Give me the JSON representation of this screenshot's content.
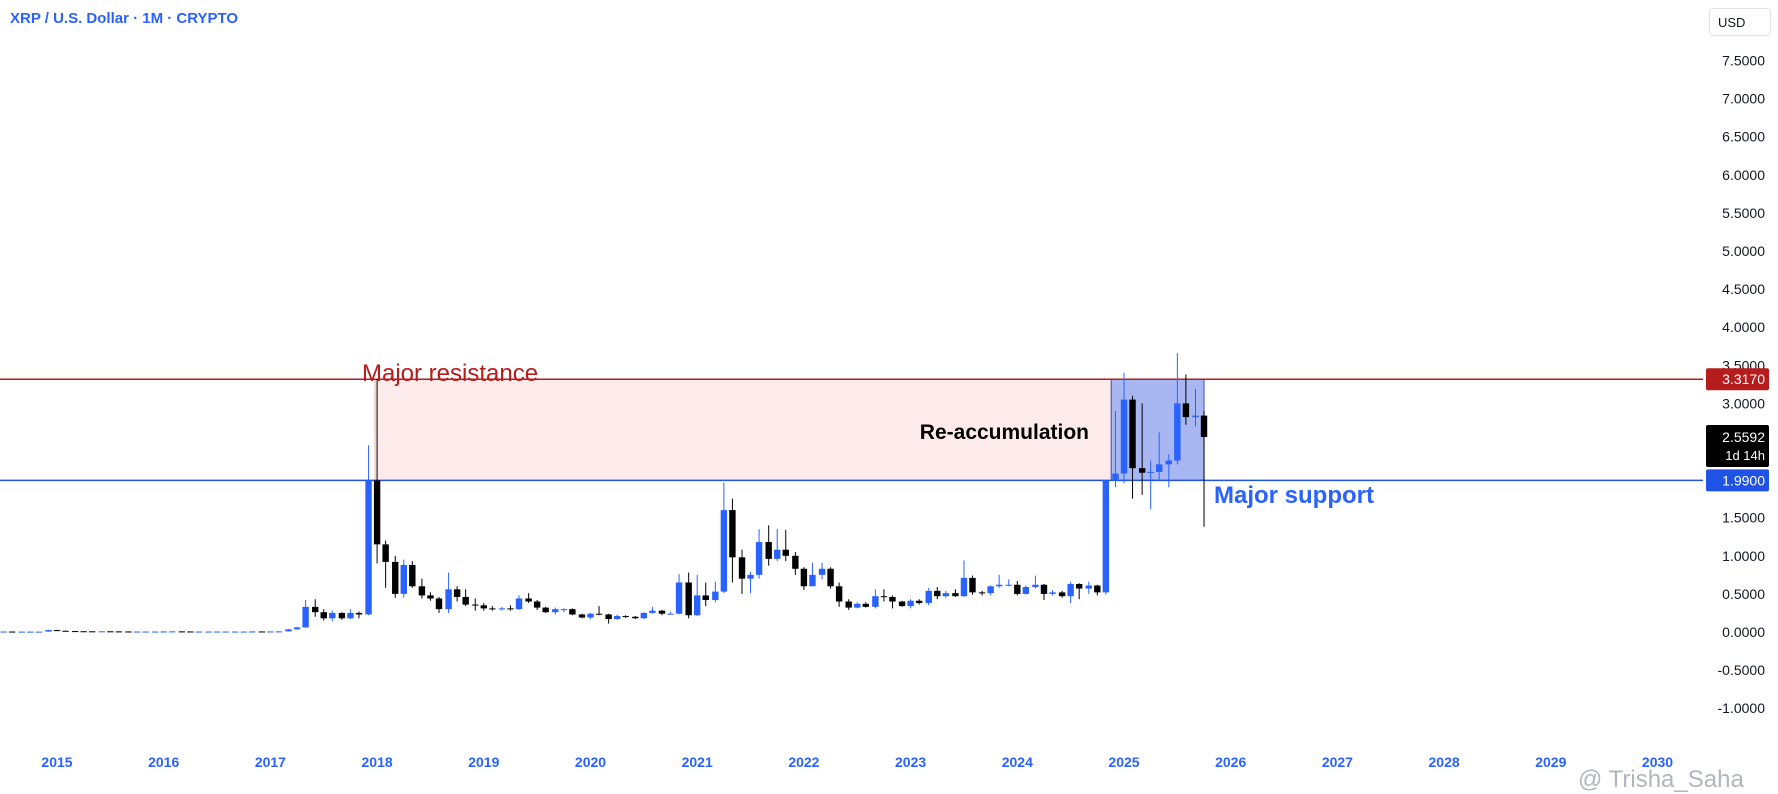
{
  "header": {
    "title": "XRP / U.S. Dollar · 1M · CRYPTO",
    "currency": "USD"
  },
  "watermark": "@ Trisha_Saha",
  "chart_data": {
    "type": "candlestick",
    "title": "XRP / U.S. Dollar · 1M · CRYPTO",
    "ylim": [
      -1.25,
      7.9
    ],
    "y_ticks": [
      "7.5000",
      "7.0000",
      "6.5000",
      "6.0000",
      "5.5000",
      "5.0000",
      "4.5000",
      "4.0000",
      "3.5000",
      "3.0000",
      "2.5000",
      "2.0000",
      "1.5000",
      "1.0000",
      "0.5000",
      "0.0000",
      "-0.5000",
      "-1.0000"
    ],
    "x_ticks": [
      "2015",
      "2016",
      "2017",
      "2018",
      "2019",
      "2020",
      "2021",
      "2022",
      "2023",
      "2024",
      "2025",
      "2026",
      "2027",
      "2028",
      "2029",
      "2030"
    ],
    "grid": false,
    "price_labels": {
      "resistance": "3.3170",
      "current_price": "2.5592",
      "countdown": "1d 14h",
      "support": "1.9900"
    },
    "levels": [
      {
        "name": "Major resistance",
        "value": 3.317,
        "color": "#b71c1c"
      },
      {
        "name": "Major support",
        "value": 1.99,
        "color": "#1e53e5"
      }
    ],
    "annotations": {
      "resistance_label": "Major resistance",
      "support_label": "Major support",
      "box_label": "Re-accumulation"
    },
    "resistance_zone": {
      "x_start": 2017.98,
      "x_end": 2024.88,
      "y_low": 1.99,
      "y_high": 3.317,
      "color": "#fce8e6"
    },
    "reaccumulation_box": {
      "x_start": 2024.88,
      "x_end": 2025.75,
      "y_low": 1.99,
      "y_high": 3.317,
      "color": "#99aaee"
    },
    "series_colors": {
      "up": "#2962ff",
      "down": "#000000"
    },
    "candles": [
      {
        "t": 2014.5,
        "o": 0.005,
        "h": 0.007,
        "l": 0.004,
        "c": 0.006
      },
      {
        "t": 2014.58,
        "o": 0.006,
        "h": 0.008,
        "l": 0.005,
        "c": 0.005
      },
      {
        "t": 2014.67,
        "o": 0.005,
        "h": 0.007,
        "l": 0.004,
        "c": 0.005
      },
      {
        "t": 2014.75,
        "o": 0.005,
        "h": 0.006,
        "l": 0.004,
        "c": 0.005
      },
      {
        "t": 2014.83,
        "o": 0.005,
        "h": 0.006,
        "l": 0.004,
        "c": 0.005
      },
      {
        "t": 2014.92,
        "o": 0.005,
        "h": 0.03,
        "l": 0.004,
        "c": 0.025
      },
      {
        "t": 2015.0,
        "o": 0.025,
        "h": 0.03,
        "l": 0.012,
        "c": 0.016
      },
      {
        "t": 2015.08,
        "o": 0.016,
        "h": 0.02,
        "l": 0.01,
        "c": 0.012
      },
      {
        "t": 2015.17,
        "o": 0.012,
        "h": 0.014,
        "l": 0.008,
        "c": 0.01
      },
      {
        "t": 2015.25,
        "o": 0.01,
        "h": 0.012,
        "l": 0.008,
        "c": 0.009
      },
      {
        "t": 2015.33,
        "o": 0.009,
        "h": 0.01,
        "l": 0.007,
        "c": 0.008
      },
      {
        "t": 2015.42,
        "o": 0.008,
        "h": 0.01,
        "l": 0.007,
        "c": 0.009
      },
      {
        "t": 2015.5,
        "o": 0.009,
        "h": 0.01,
        "l": 0.007,
        "c": 0.008
      },
      {
        "t": 2015.58,
        "o": 0.008,
        "h": 0.009,
        "l": 0.006,
        "c": 0.007
      },
      {
        "t": 2015.67,
        "o": 0.007,
        "h": 0.008,
        "l": 0.006,
        "c": 0.006
      },
      {
        "t": 2015.75,
        "o": 0.006,
        "h": 0.007,
        "l": 0.005,
        "c": 0.006
      },
      {
        "t": 2015.83,
        "o": 0.006,
        "h": 0.007,
        "l": 0.005,
        "c": 0.006
      },
      {
        "t": 2015.92,
        "o": 0.006,
        "h": 0.007,
        "l": 0.005,
        "c": 0.006
      },
      {
        "t": 2016.0,
        "o": 0.006,
        "h": 0.008,
        "l": 0.005,
        "c": 0.007
      },
      {
        "t": 2016.08,
        "o": 0.007,
        "h": 0.009,
        "l": 0.006,
        "c": 0.008
      },
      {
        "t": 2016.17,
        "o": 0.008,
        "h": 0.009,
        "l": 0.006,
        "c": 0.007
      },
      {
        "t": 2016.25,
        "o": 0.007,
        "h": 0.008,
        "l": 0.006,
        "c": 0.006
      },
      {
        "t": 2016.33,
        "o": 0.006,
        "h": 0.008,
        "l": 0.005,
        "c": 0.006
      },
      {
        "t": 2016.42,
        "o": 0.006,
        "h": 0.008,
        "l": 0.005,
        "c": 0.006
      },
      {
        "t": 2016.5,
        "o": 0.006,
        "h": 0.007,
        "l": 0.005,
        "c": 0.006
      },
      {
        "t": 2016.58,
        "o": 0.006,
        "h": 0.007,
        "l": 0.005,
        "c": 0.006
      },
      {
        "t": 2016.67,
        "o": 0.006,
        "h": 0.007,
        "l": 0.005,
        "c": 0.006
      },
      {
        "t": 2016.75,
        "o": 0.006,
        "h": 0.007,
        "l": 0.005,
        "c": 0.006
      },
      {
        "t": 2016.83,
        "o": 0.006,
        "h": 0.008,
        "l": 0.005,
        "c": 0.007
      },
      {
        "t": 2016.92,
        "o": 0.007,
        "h": 0.008,
        "l": 0.006,
        "c": 0.006
      },
      {
        "t": 2017.0,
        "o": 0.006,
        "h": 0.008,
        "l": 0.005,
        "c": 0.007
      },
      {
        "t": 2017.08,
        "o": 0.007,
        "h": 0.009,
        "l": 0.006,
        "c": 0.008
      },
      {
        "t": 2017.17,
        "o": 0.008,
        "h": 0.04,
        "l": 0.007,
        "c": 0.035
      },
      {
        "t": 2017.25,
        "o": 0.035,
        "h": 0.07,
        "l": 0.03,
        "c": 0.06
      },
      {
        "t": 2017.33,
        "o": 0.06,
        "h": 0.42,
        "l": 0.055,
        "c": 0.33
      },
      {
        "t": 2017.42,
        "o": 0.33,
        "h": 0.43,
        "l": 0.2,
        "c": 0.26
      },
      {
        "t": 2017.5,
        "o": 0.26,
        "h": 0.3,
        "l": 0.15,
        "c": 0.18
      },
      {
        "t": 2017.58,
        "o": 0.18,
        "h": 0.28,
        "l": 0.14,
        "c": 0.25
      },
      {
        "t": 2017.67,
        "o": 0.25,
        "h": 0.26,
        "l": 0.16,
        "c": 0.18
      },
      {
        "t": 2017.75,
        "o": 0.18,
        "h": 0.3,
        "l": 0.17,
        "c": 0.25
      },
      {
        "t": 2017.83,
        "o": 0.25,
        "h": 0.27,
        "l": 0.18,
        "c": 0.23
      },
      {
        "t": 2017.92,
        "o": 0.23,
        "h": 2.45,
        "l": 0.22,
        "c": 1.99
      },
      {
        "t": 2018.0,
        "o": 1.99,
        "h": 3.317,
        "l": 0.9,
        "c": 1.15
      },
      {
        "t": 2018.08,
        "o": 1.15,
        "h": 1.2,
        "l": 0.58,
        "c": 0.92
      },
      {
        "t": 2018.17,
        "o": 0.92,
        "h": 1.0,
        "l": 0.45,
        "c": 0.5
      },
      {
        "t": 2018.25,
        "o": 0.5,
        "h": 0.95,
        "l": 0.45,
        "c": 0.88
      },
      {
        "t": 2018.33,
        "o": 0.88,
        "h": 0.93,
        "l": 0.58,
        "c": 0.6
      },
      {
        "t": 2018.42,
        "o": 0.6,
        "h": 0.7,
        "l": 0.44,
        "c": 0.48
      },
      {
        "t": 2018.5,
        "o": 0.48,
        "h": 0.52,
        "l": 0.41,
        "c": 0.44
      },
      {
        "t": 2018.58,
        "o": 0.44,
        "h": 0.46,
        "l": 0.25,
        "c": 0.3
      },
      {
        "t": 2018.67,
        "o": 0.3,
        "h": 0.78,
        "l": 0.25,
        "c": 0.56
      },
      {
        "t": 2018.75,
        "o": 0.56,
        "h": 0.6,
        "l": 0.4,
        "c": 0.46
      },
      {
        "t": 2018.83,
        "o": 0.46,
        "h": 0.56,
        "l": 0.34,
        "c": 0.36
      },
      {
        "t": 2018.92,
        "o": 0.36,
        "h": 0.44,
        "l": 0.28,
        "c": 0.35
      },
      {
        "t": 2019.0,
        "o": 0.35,
        "h": 0.38,
        "l": 0.28,
        "c": 0.31
      },
      {
        "t": 2019.08,
        "o": 0.31,
        "h": 0.34,
        "l": 0.28,
        "c": 0.3
      },
      {
        "t": 2019.17,
        "o": 0.3,
        "h": 0.33,
        "l": 0.28,
        "c": 0.31
      },
      {
        "t": 2019.25,
        "o": 0.31,
        "h": 0.35,
        "l": 0.28,
        "c": 0.3
      },
      {
        "t": 2019.33,
        "o": 0.3,
        "h": 0.48,
        "l": 0.29,
        "c": 0.44
      },
      {
        "t": 2019.42,
        "o": 0.44,
        "h": 0.51,
        "l": 0.38,
        "c": 0.4
      },
      {
        "t": 2019.5,
        "o": 0.4,
        "h": 0.42,
        "l": 0.29,
        "c": 0.32
      },
      {
        "t": 2019.58,
        "o": 0.32,
        "h": 0.33,
        "l": 0.25,
        "c": 0.26
      },
      {
        "t": 2019.67,
        "o": 0.26,
        "h": 0.32,
        "l": 0.23,
        "c": 0.3
      },
      {
        "t": 2019.75,
        "o": 0.3,
        "h": 0.31,
        "l": 0.26,
        "c": 0.3
      },
      {
        "t": 2019.83,
        "o": 0.3,
        "h": 0.31,
        "l": 0.22,
        "c": 0.23
      },
      {
        "t": 2019.92,
        "o": 0.23,
        "h": 0.24,
        "l": 0.18,
        "c": 0.19
      },
      {
        "t": 2020.0,
        "o": 0.19,
        "h": 0.25,
        "l": 0.17,
        "c": 0.24
      },
      {
        "t": 2020.08,
        "o": 0.24,
        "h": 0.34,
        "l": 0.22,
        "c": 0.23
      },
      {
        "t": 2020.17,
        "o": 0.23,
        "h": 0.24,
        "l": 0.11,
        "c": 0.17
      },
      {
        "t": 2020.25,
        "o": 0.17,
        "h": 0.23,
        "l": 0.16,
        "c": 0.21
      },
      {
        "t": 2020.33,
        "o": 0.21,
        "h": 0.22,
        "l": 0.18,
        "c": 0.2
      },
      {
        "t": 2020.42,
        "o": 0.2,
        "h": 0.21,
        "l": 0.17,
        "c": 0.18
      },
      {
        "t": 2020.5,
        "o": 0.18,
        "h": 0.26,
        "l": 0.17,
        "c": 0.25
      },
      {
        "t": 2020.58,
        "o": 0.25,
        "h": 0.33,
        "l": 0.24,
        "c": 0.28
      },
      {
        "t": 2020.67,
        "o": 0.28,
        "h": 0.29,
        "l": 0.22,
        "c": 0.24
      },
      {
        "t": 2020.75,
        "o": 0.24,
        "h": 0.26,
        "l": 0.23,
        "c": 0.24
      },
      {
        "t": 2020.83,
        "o": 0.24,
        "h": 0.76,
        "l": 0.23,
        "c": 0.65
      },
      {
        "t": 2020.92,
        "o": 0.65,
        "h": 0.78,
        "l": 0.18,
        "c": 0.22
      },
      {
        "t": 2021.0,
        "o": 0.22,
        "h": 0.75,
        "l": 0.21,
        "c": 0.48
      },
      {
        "t": 2021.08,
        "o": 0.48,
        "h": 0.65,
        "l": 0.34,
        "c": 0.42
      },
      {
        "t": 2021.17,
        "o": 0.42,
        "h": 0.66,
        "l": 0.39,
        "c": 0.53
      },
      {
        "t": 2021.25,
        "o": 0.53,
        "h": 1.96,
        "l": 0.51,
        "c": 1.6
      },
      {
        "t": 2021.33,
        "o": 1.6,
        "h": 1.75,
        "l": 0.65,
        "c": 0.98
      },
      {
        "t": 2021.42,
        "o": 0.98,
        "h": 1.08,
        "l": 0.5,
        "c": 0.7
      },
      {
        "t": 2021.5,
        "o": 0.7,
        "h": 0.79,
        "l": 0.51,
        "c": 0.75
      },
      {
        "t": 2021.58,
        "o": 0.75,
        "h": 1.35,
        "l": 0.7,
        "c": 1.18
      },
      {
        "t": 2021.67,
        "o": 1.18,
        "h": 1.4,
        "l": 0.87,
        "c": 0.96
      },
      {
        "t": 2021.75,
        "o": 0.96,
        "h": 1.35,
        "l": 0.93,
        "c": 1.08
      },
      {
        "t": 2021.83,
        "o": 1.08,
        "h": 1.34,
        "l": 0.93,
        "c": 1.0
      },
      {
        "t": 2021.92,
        "o": 1.0,
        "h": 1.05,
        "l": 0.75,
        "c": 0.83
      },
      {
        "t": 2022.0,
        "o": 0.83,
        "h": 0.85,
        "l": 0.55,
        "c": 0.6
      },
      {
        "t": 2022.08,
        "o": 0.6,
        "h": 0.91,
        "l": 0.6,
        "c": 0.75
      },
      {
        "t": 2022.17,
        "o": 0.75,
        "h": 0.91,
        "l": 0.69,
        "c": 0.83
      },
      {
        "t": 2022.25,
        "o": 0.83,
        "h": 0.85,
        "l": 0.57,
        "c": 0.6
      },
      {
        "t": 2022.33,
        "o": 0.6,
        "h": 0.65,
        "l": 0.33,
        "c": 0.4
      },
      {
        "t": 2022.42,
        "o": 0.4,
        "h": 0.43,
        "l": 0.29,
        "c": 0.32
      },
      {
        "t": 2022.5,
        "o": 0.32,
        "h": 0.39,
        "l": 0.31,
        "c": 0.37
      },
      {
        "t": 2022.58,
        "o": 0.37,
        "h": 0.39,
        "l": 0.32,
        "c": 0.33
      },
      {
        "t": 2022.67,
        "o": 0.33,
        "h": 0.56,
        "l": 0.31,
        "c": 0.47
      },
      {
        "t": 2022.75,
        "o": 0.47,
        "h": 0.56,
        "l": 0.4,
        "c": 0.46
      },
      {
        "t": 2022.83,
        "o": 0.46,
        "h": 0.48,
        "l": 0.31,
        "c": 0.4
      },
      {
        "t": 2022.92,
        "o": 0.4,
        "h": 0.41,
        "l": 0.33,
        "c": 0.34
      },
      {
        "t": 2023.0,
        "o": 0.34,
        "h": 0.43,
        "l": 0.31,
        "c": 0.41
      },
      {
        "t": 2023.08,
        "o": 0.41,
        "h": 0.43,
        "l": 0.36,
        "c": 0.38
      },
      {
        "t": 2023.17,
        "o": 0.38,
        "h": 0.58,
        "l": 0.35,
        "c": 0.54
      },
      {
        "t": 2023.25,
        "o": 0.54,
        "h": 0.59,
        "l": 0.43,
        "c": 0.47
      },
      {
        "t": 2023.33,
        "o": 0.47,
        "h": 0.54,
        "l": 0.45,
        "c": 0.51
      },
      {
        "t": 2023.42,
        "o": 0.51,
        "h": 0.56,
        "l": 0.46,
        "c": 0.47
      },
      {
        "t": 2023.5,
        "o": 0.47,
        "h": 0.94,
        "l": 0.46,
        "c": 0.71
      },
      {
        "t": 2023.58,
        "o": 0.71,
        "h": 0.74,
        "l": 0.49,
        "c": 0.52
      },
      {
        "t": 2023.67,
        "o": 0.52,
        "h": 0.54,
        "l": 0.48,
        "c": 0.51
      },
      {
        "t": 2023.75,
        "o": 0.51,
        "h": 0.61,
        "l": 0.48,
        "c": 0.6
      },
      {
        "t": 2023.83,
        "o": 0.6,
        "h": 0.75,
        "l": 0.58,
        "c": 0.62
      },
      {
        "t": 2023.92,
        "o": 0.62,
        "h": 0.69,
        "l": 0.6,
        "c": 0.62
      },
      {
        "t": 2024.0,
        "o": 0.62,
        "h": 0.67,
        "l": 0.48,
        "c": 0.5
      },
      {
        "t": 2024.08,
        "o": 0.5,
        "h": 0.61,
        "l": 0.49,
        "c": 0.59
      },
      {
        "t": 2024.17,
        "o": 0.59,
        "h": 0.74,
        "l": 0.57,
        "c": 0.62
      },
      {
        "t": 2024.25,
        "o": 0.62,
        "h": 0.63,
        "l": 0.42,
        "c": 0.5
      },
      {
        "t": 2024.33,
        "o": 0.5,
        "h": 0.55,
        "l": 0.48,
        "c": 0.52
      },
      {
        "t": 2024.42,
        "o": 0.52,
        "h": 0.54,
        "l": 0.45,
        "c": 0.47
      },
      {
        "t": 2024.5,
        "o": 0.47,
        "h": 0.66,
        "l": 0.38,
        "c": 0.63
      },
      {
        "t": 2024.58,
        "o": 0.63,
        "h": 0.64,
        "l": 0.43,
        "c": 0.57
      },
      {
        "t": 2024.67,
        "o": 0.57,
        "h": 0.66,
        "l": 0.5,
        "c": 0.61
      },
      {
        "t": 2024.75,
        "o": 0.61,
        "h": 0.62,
        "l": 0.48,
        "c": 0.52
      },
      {
        "t": 2024.83,
        "o": 0.52,
        "h": 1.99,
        "l": 0.49,
        "c": 1.99
      },
      {
        "t": 2024.92,
        "o": 1.99,
        "h": 2.9,
        "l": 1.9,
        "c": 2.08
      },
      {
        "t": 2025.0,
        "o": 2.08,
        "h": 3.4,
        "l": 1.95,
        "c": 3.05
      },
      {
        "t": 2025.08,
        "o": 3.05,
        "h": 3.1,
        "l": 1.75,
        "c": 2.15
      },
      {
        "t": 2025.17,
        "o": 2.15,
        "h": 3.0,
        "l": 1.8,
        "c": 2.09
      },
      {
        "t": 2025.25,
        "o": 2.09,
        "h": 2.25,
        "l": 1.61,
        "c": 2.1
      },
      {
        "t": 2025.33,
        "o": 2.1,
        "h": 2.62,
        "l": 2.0,
        "c": 2.2
      },
      {
        "t": 2025.42,
        "o": 2.2,
        "h": 2.33,
        "l": 1.9,
        "c": 2.25
      },
      {
        "t": 2025.5,
        "o": 2.25,
        "h": 3.66,
        "l": 2.2,
        "c": 3.0
      },
      {
        "t": 2025.58,
        "o": 3.0,
        "h": 3.38,
        "l": 2.72,
        "c": 2.82
      },
      {
        "t": 2025.67,
        "o": 2.82,
        "h": 3.19,
        "l": 2.7,
        "c": 2.84
      },
      {
        "t": 2025.75,
        "o": 2.84,
        "h": 2.9,
        "l": 1.38,
        "c": 2.559
      }
    ]
  }
}
